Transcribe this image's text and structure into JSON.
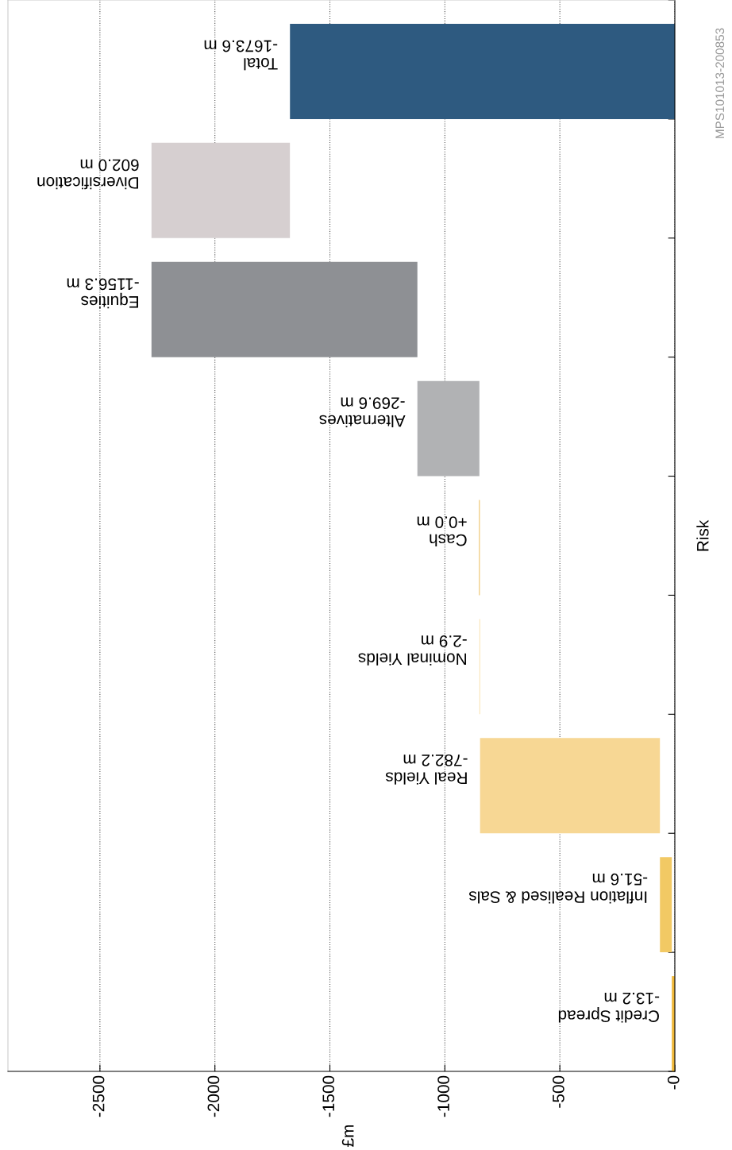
{
  "chart_data": {
    "type": "bar",
    "orientation": "horizontal",
    "categories": [
      "Total",
      "Diversification",
      "Equities",
      "Alternatives",
      "Cash",
      "Nominal Yields",
      "Real Yields",
      "Inflation Realised & Sals",
      "Credit Spread"
    ],
    "values": [
      -1673.6,
      602.0,
      -1156.3,
      -269.6,
      0.0,
      -2.9,
      -782.2,
      -51.6,
      -13.2
    ],
    "base": [
      0,
      -2275.8,
      -1119.5,
      -849.9,
      -849.9,
      -847.0,
      -64.8,
      -13.2,
      0
    ],
    "colors": [
      "#2e5a80",
      "#d6cfd0",
      "#8e9094",
      "#b1b2b4",
      "#f2d08a",
      "#f8dca0",
      "#f7d794",
      "#f2c964",
      "#f0b93a"
    ],
    "value_labels": [
      "-1673.6 m",
      "602.0 m",
      "-1156.3 m",
      "-269.6 m",
      "+0.0 m",
      "-2.9 m",
      "-782.2 m",
      "-51.6 m",
      "-13.2 m"
    ],
    "ylabel": "Risk",
    "xlim": [
      -2900,
      0
    ],
    "xticks": [
      {
        "value": -2500,
        "label": "-2500"
      },
      {
        "value": -2000,
        "label": "-2000"
      },
      {
        "value": -1500,
        "label": "-1500"
      },
      {
        "value": -1000,
        "label": "-1000"
      },
      {
        "value": -500,
        "label": "-500"
      },
      {
        "value": 0,
        "label": "-0"
      }
    ],
    "grid": "x",
    "annotations": [
      "£m",
      "MPS101013-200853"
    ]
  }
}
